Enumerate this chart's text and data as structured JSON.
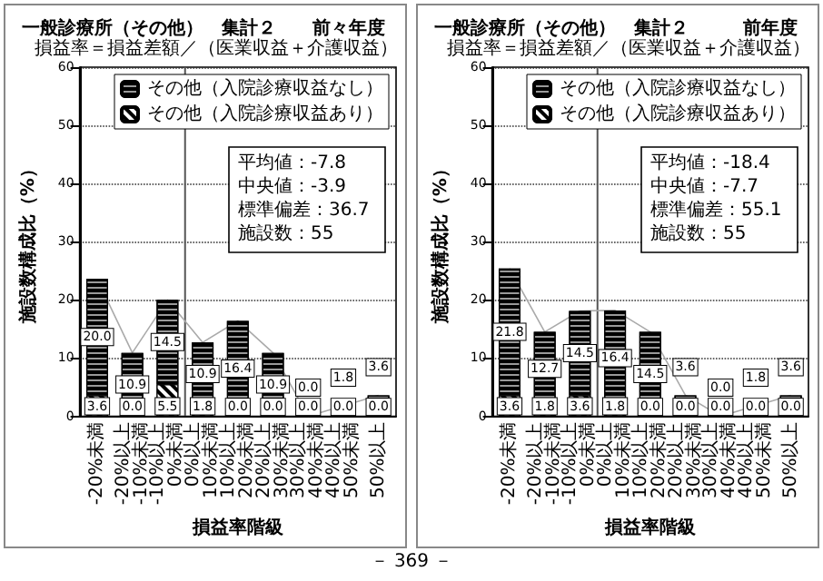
{
  "chart_data": [
    {
      "type": "bar",
      "title": "一般診療所（その他）　集計２",
      "subtitle": "前々年度",
      "xlabel": "損益率階級",
      "ylabel": "施設数構成比（%）",
      "categories": [
        "-20%未満",
        "-20%以上\n-10%未満",
        "-10%以上\n0%未満",
        "0%以上\n10%未満",
        "10%以上\n20%未満",
        "20%以上\n30%未満",
        "30%以上\n40%未満",
        "40%以上\n50%未満",
        "50%以上"
      ],
      "series": [
        {
          "name": "その他（入院診療収益あり）",
          "color": "#000000",
          "values": [
            3.6,
            0.0,
            5.5,
            1.8,
            0.0,
            0.0,
            0.0,
            0.0,
            0.0
          ],
          "value_labels": [
            "3.6",
            "0.0",
            "5.5",
            "1.8",
            "0.0",
            "0.0",
            "0.0",
            "0.0",
            "0.0"
          ]
        },
        {
          "name": "その他（入院診療収益なし）",
          "color": "#999999",
          "values": [
            20.0,
            10.9,
            14.5,
            10.9,
            16.4,
            10.9,
            0.0,
            1.8,
            3.6
          ],
          "value_labels": [
            "20.0",
            "10.9",
            "14.5",
            "10.9",
            "16.4",
            "10.9",
            "0.0",
            "1.8",
            "3.6"
          ]
        },
        {
          "type": "line",
          "color": "#aaaaaa",
          "values": [
            23.6,
            10.9,
            20.0,
            12.7,
            16.4,
            10.9,
            0.0,
            1.8,
            3.6
          ]
        }
      ],
      "stacked": true,
      "marker": "none",
      "ylim": [
        0,
        60
      ],
      "yticks": [
        0,
        10,
        20,
        30,
        40,
        50,
        60
      ],
      "grid": "y",
      "legend": "top right",
      "ref_lines": [
        {
          "axis": "x",
          "value": "0%以上\n10%未満",
          "color": "#555555"
        }
      ],
      "annotations": [
        "損益率＝損益差額／（医業収益＋介護収益）",
        "平均値：-7.8",
        "中央値：-3.9",
        "標準偏差：36.7",
        "施設数：55"
      ]
    },
    {
      "type": "bar",
      "title": "一般診療所（その他）　集計２",
      "subtitle": "前年度",
      "xlabel": "損益率階級",
      "ylabel": "施設数構成比（%）",
      "categories": [
        "-20%未満",
        "-20%以上\n-10%未満",
        "-10%以上\n0%未満",
        "0%以上\n10%未満",
        "10%以上\n20%未満",
        "20%以上\n30%未満",
        "30%以上\n40%未満",
        "40%以上\n50%未満",
        "50%以上"
      ],
      "series": [
        {
          "name": "その他（入院診療収益あり）",
          "color": "#000000",
          "values": [
            3.6,
            1.8,
            3.6,
            1.8,
            0.0,
            0.0,
            0.0,
            0.0,
            0.0
          ],
          "value_labels": [
            "3.6",
            "1.8",
            "3.6",
            "1.8",
            "0.0",
            "0.0",
            "0.0",
            "0.0",
            "0.0"
          ]
        },
        {
          "name": "その他（入院診療収益なし）",
          "color": "#999999",
          "values": [
            21.8,
            12.7,
            14.5,
            16.4,
            14.5,
            3.6,
            0.0,
            1.8,
            3.6
          ],
          "value_labels": [
            "21.8",
            "12.7",
            "14.5",
            "16.4",
            "14.5",
            "3.6",
            "0.0",
            "1.8",
            "3.6"
          ]
        },
        {
          "type": "line",
          "color": "#aaaaaa",
          "values": [
            25.4,
            14.5,
            18.1,
            18.2,
            14.5,
            3.6,
            0.0,
            1.8,
            3.6
          ]
        }
      ],
      "stacked": true,
      "marker": "none",
      "ylim": [
        0,
        60
      ],
      "yticks": [
        0,
        10,
        20,
        30,
        40,
        50,
        60
      ],
      "grid": "y",
      "legend": "top right",
      "ref_lines": [
        {
          "axis": "x",
          "value": "0%以上\n10%未満",
          "color": "#555555"
        }
      ],
      "annotations": [
        "損益率＝損益差額／（医業収益＋介護収益）",
        "平均値：-18.4",
        "中央値：-7.7",
        "標準偏差：55.1",
        "施設数：55",
        "－ 369 －"
      ]
    }
  ]
}
